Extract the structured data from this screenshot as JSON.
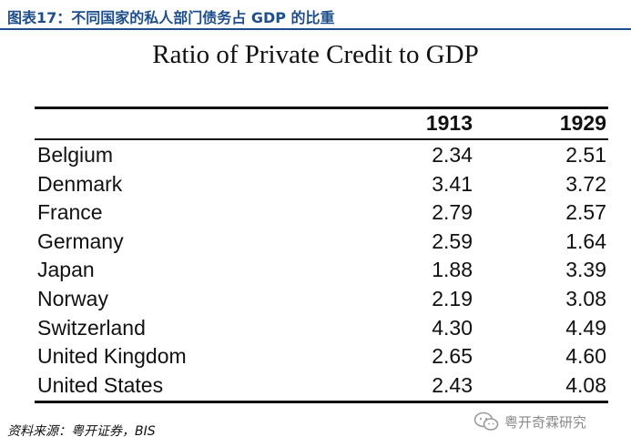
{
  "figure_caption": "图表17：不同国家的私人部门债务占 GDP 的比重",
  "table": {
    "title": "Ratio of Private Credit to GDP",
    "columns": [
      "1913",
      "1929"
    ],
    "rows": [
      {
        "country": "Belgium",
        "v1913": "2.34",
        "v1929": "2.51"
      },
      {
        "country": "Denmark",
        "v1913": "3.41",
        "v1929": "3.72"
      },
      {
        "country": "France",
        "v1913": "2.79",
        "v1929": "2.57"
      },
      {
        "country": "Germany",
        "v1913": "2.59",
        "v1929": "1.64"
      },
      {
        "country": "Japan",
        "v1913": "1.88",
        "v1929": "3.39"
      },
      {
        "country": "Norway",
        "v1913": "2.19",
        "v1929": "3.08"
      },
      {
        "country": "Switzerland",
        "v1913": "4.30",
        "v1929": "4.49"
      },
      {
        "country": "United Kingdom",
        "v1913": "2.65",
        "v1929": "4.60"
      },
      {
        "country": "United States",
        "v1913": "2.43",
        "v1929": "4.08"
      }
    ]
  },
  "source": "资料来源：粤开证券，BIS",
  "watermark": {
    "text": "粤开奇霖研究",
    "icon": "wechat-icon"
  },
  "colors": {
    "caption": "#1f4e8c",
    "text": "#111111",
    "watermark": "#8a8a8a"
  }
}
